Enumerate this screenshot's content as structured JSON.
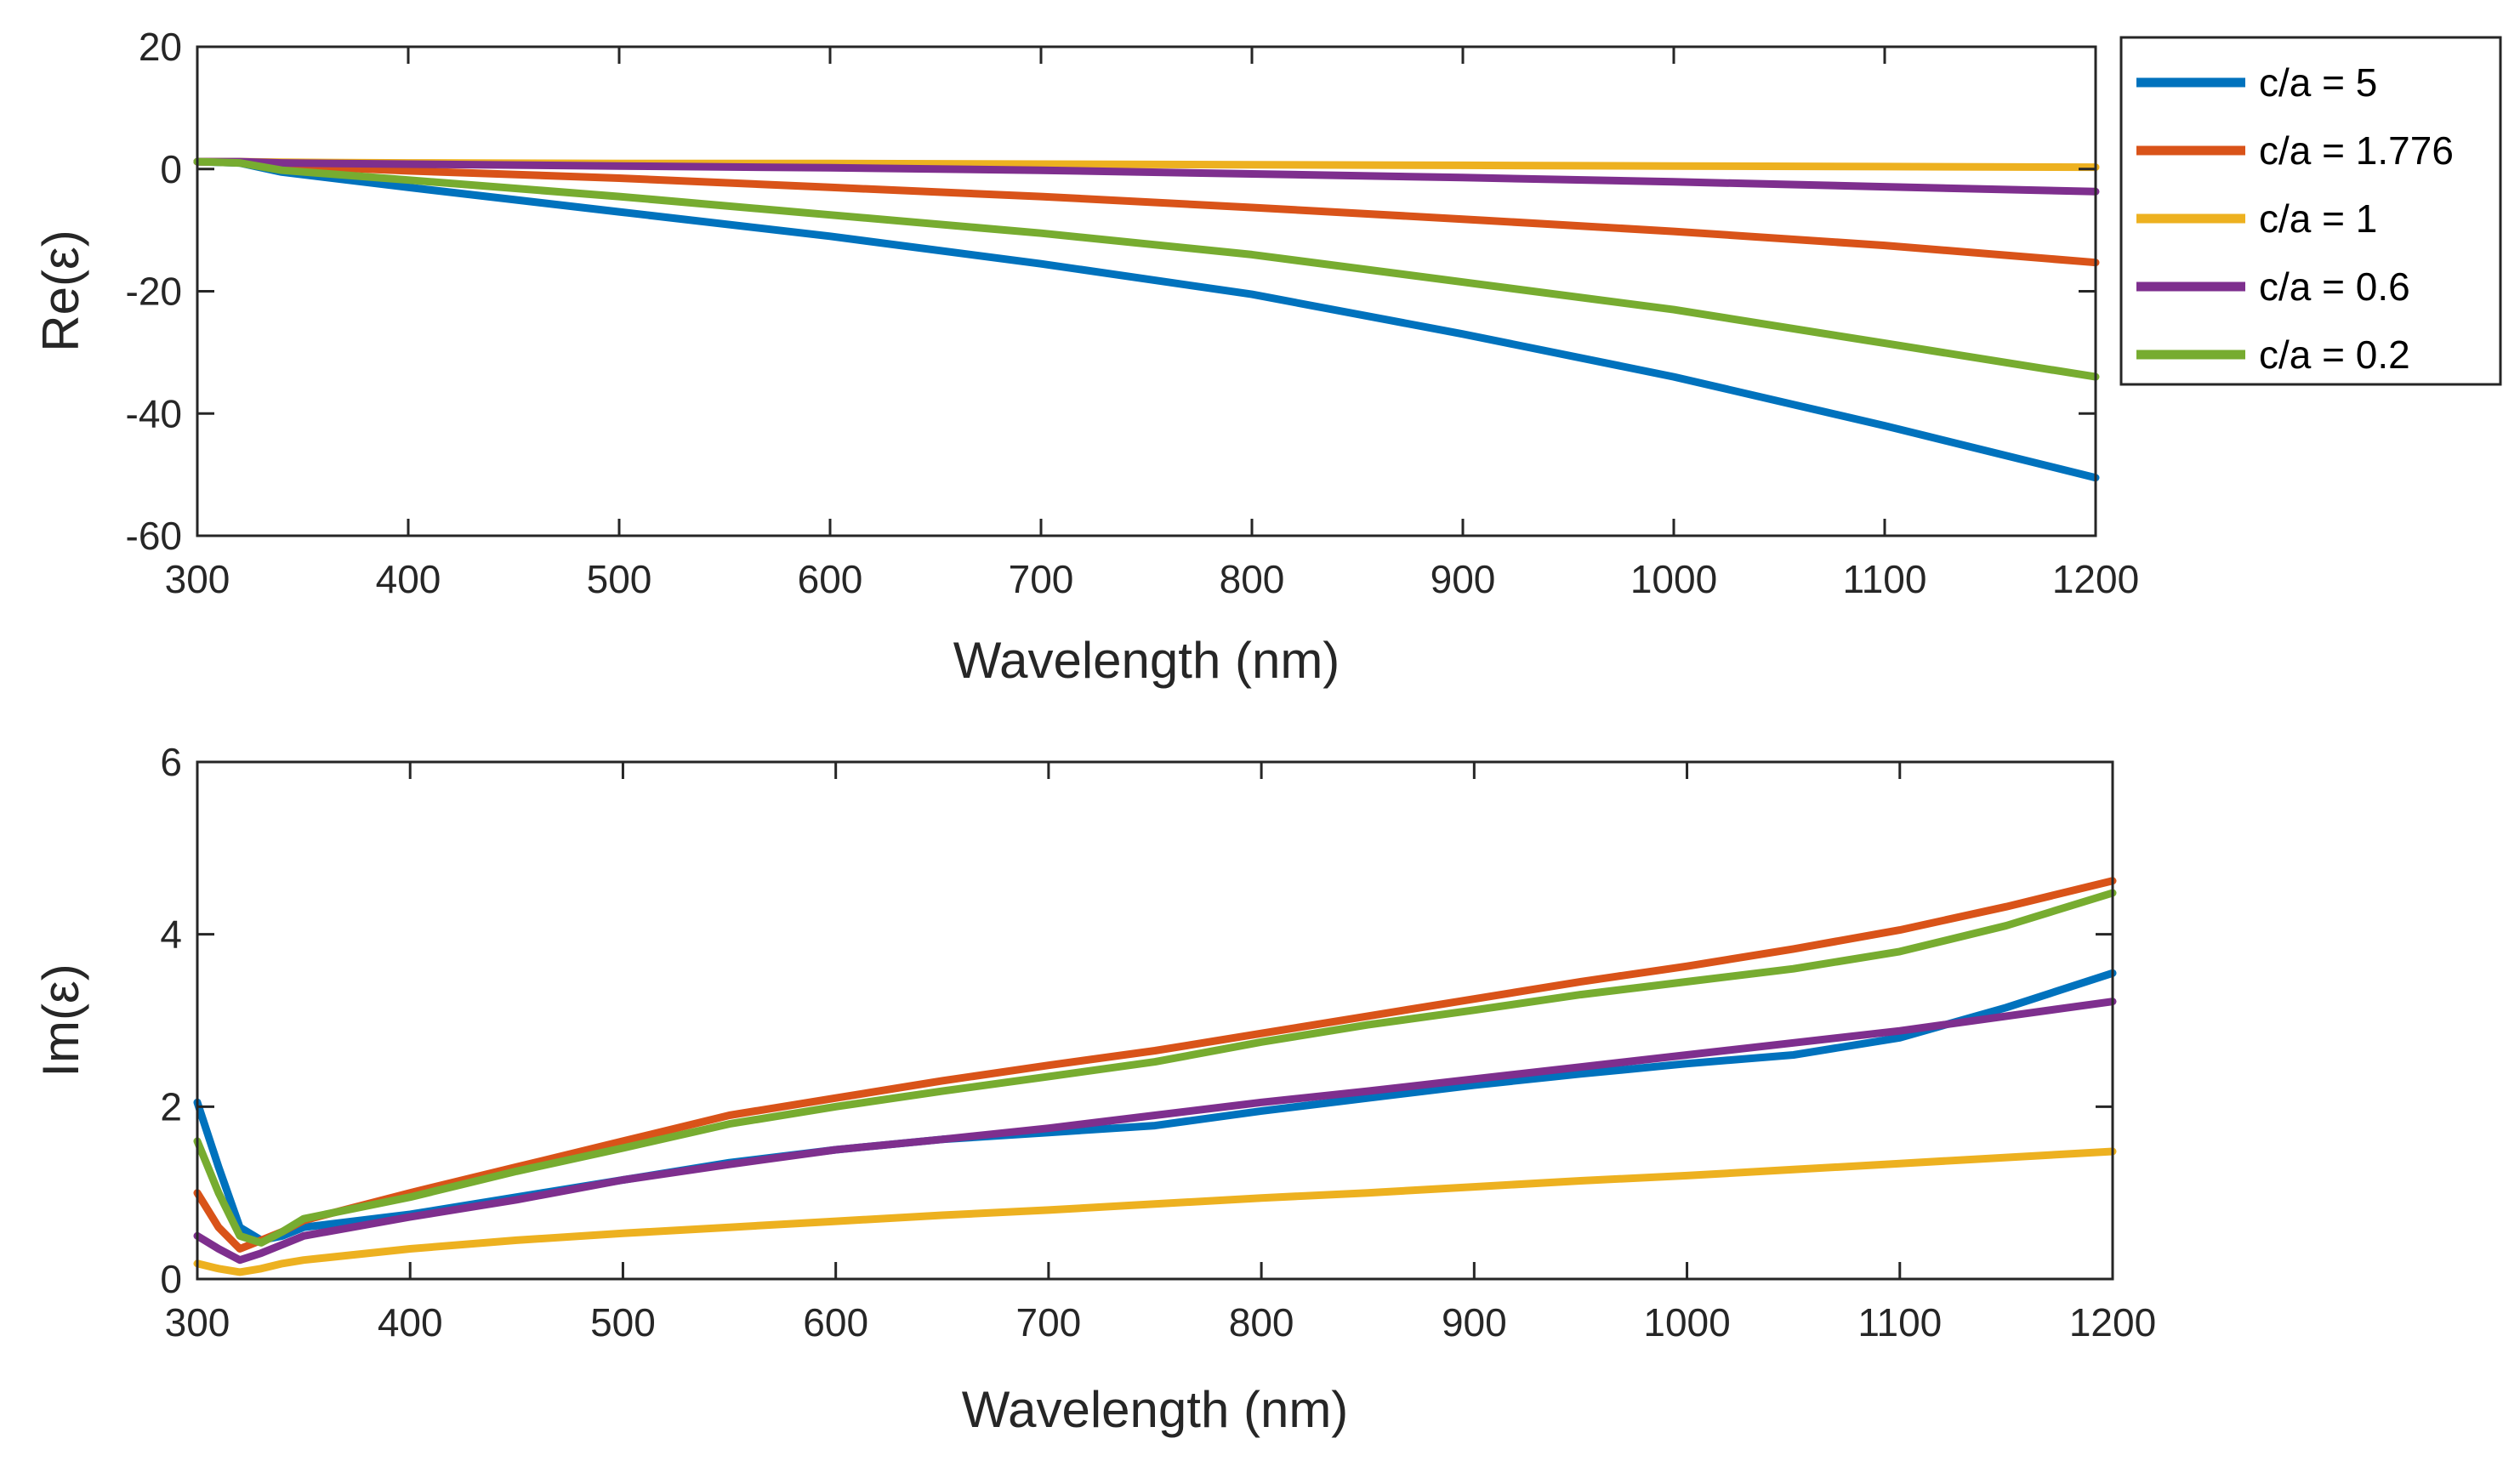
{
  "chart_data": [
    {
      "type": "line",
      "title": "",
      "xlabel": "Wavelength (nm)",
      "ylabel": "Re(ε)",
      "xlim": [
        300,
        1200
      ],
      "ylim": [
        -60,
        20
      ],
      "xticks": [
        "300",
        "400",
        "500",
        "600",
        "700",
        "800",
        "900",
        "1000",
        "1100",
        "1200"
      ],
      "yticks": [
        "-60",
        "-40",
        "-20",
        "0",
        "20"
      ],
      "grid": false,
      "legend": "outside-right",
      "x": [
        300,
        320,
        340,
        400,
        500,
        600,
        700,
        800,
        900,
        1000,
        1100,
        1200
      ],
      "series": [
        {
          "name": "c/a = 5",
          "color": "#0072BD",
          "values": [
            1.2,
            1.0,
            -0.5,
            -3,
            -7,
            -11,
            -15.5,
            -20.5,
            -27,
            -34,
            -42,
            -50.5
          ]
        },
        {
          "name": "c/a = 1.776",
          "color": "#D95319",
          "values": [
            1.2,
            1.1,
            0.6,
            -0.3,
            -1.5,
            -3,
            -4.5,
            -6.3,
            -8.2,
            -10.2,
            -12.5,
            -15.3
          ]
        },
        {
          "name": "c/a = 1",
          "color": "#EDB120",
          "values": [
            1.2,
            1.2,
            1.1,
            1.0,
            0.9,
            0.9,
            0.8,
            0.7,
            0.6,
            0.5,
            0.4,
            0.3
          ]
        },
        {
          "name": "c/a = 0.6",
          "color": "#7E2F8E",
          "values": [
            1.2,
            1.2,
            1.0,
            0.8,
            0.5,
            0.2,
            -0.2,
            -0.8,
            -1.4,
            -2.1,
            -2.9,
            -3.7
          ]
        },
        {
          "name": "c/a = 0.2",
          "color": "#77AC30",
          "values": [
            1.2,
            1.0,
            -0.2,
            -1.8,
            -4.5,
            -7.5,
            -10.5,
            -14,
            -18.5,
            -23,
            -28.5,
            -34
          ]
        }
      ]
    },
    {
      "type": "line",
      "title": "",
      "xlabel": "Wavelength (nm)",
      "ylabel": "Im(ε)",
      "xlim": [
        300,
        1200
      ],
      "ylim": [
        0,
        6
      ],
      "xticks": [
        "300",
        "400",
        "500",
        "600",
        "700",
        "800",
        "900",
        "1000",
        "1100",
        "1200"
      ],
      "yticks": [
        "0",
        "2",
        "4",
        "6"
      ],
      "grid": false,
      "x": [
        300,
        310,
        320,
        330,
        340,
        350,
        400,
        450,
        500,
        550,
        600,
        650,
        700,
        750,
        800,
        850,
        900,
        950,
        1000,
        1050,
        1100,
        1150,
        1200
      ],
      "series": [
        {
          "name": "c/a = 5",
          "color": "#0072BD",
          "values": [
            2.05,
            1.3,
            0.6,
            0.45,
            0.5,
            0.6,
            0.75,
            0.95,
            1.15,
            1.35,
            1.5,
            1.62,
            1.7,
            1.78,
            1.95,
            2.1,
            2.25,
            2.38,
            2.5,
            2.6,
            2.8,
            3.15,
            3.55
          ]
        },
        {
          "name": "c/a = 1.776",
          "color": "#D95319",
          "values": [
            1.0,
            0.6,
            0.35,
            0.45,
            0.55,
            0.68,
            1.0,
            1.3,
            1.6,
            1.9,
            2.1,
            2.3,
            2.48,
            2.65,
            2.85,
            3.05,
            3.25,
            3.45,
            3.63,
            3.83,
            4.05,
            4.32,
            4.62
          ]
        },
        {
          "name": "c/a = 1",
          "color": "#EDB120",
          "values": [
            0.18,
            0.12,
            0.08,
            0.12,
            0.18,
            0.22,
            0.35,
            0.45,
            0.53,
            0.6,
            0.67,
            0.74,
            0.8,
            0.87,
            0.94,
            1.0,
            1.07,
            1.14,
            1.2,
            1.27,
            1.34,
            1.41,
            1.48
          ]
        },
        {
          "name": "c/a = 0.6",
          "color": "#7E2F8E",
          "values": [
            0.5,
            0.35,
            0.22,
            0.3,
            0.4,
            0.5,
            0.72,
            0.92,
            1.15,
            1.33,
            1.5,
            1.62,
            1.75,
            1.9,
            2.05,
            2.18,
            2.32,
            2.46,
            2.6,
            2.74,
            2.88,
            3.05,
            3.22
          ]
        },
        {
          "name": "c/a = 0.2",
          "color": "#77AC30",
          "values": [
            1.6,
            1.0,
            0.5,
            0.42,
            0.55,
            0.7,
            0.95,
            1.25,
            1.52,
            1.8,
            2.0,
            2.18,
            2.35,
            2.52,
            2.75,
            2.95,
            3.12,
            3.3,
            3.45,
            3.6,
            3.8,
            4.1,
            4.48
          ]
        }
      ]
    }
  ]
}
